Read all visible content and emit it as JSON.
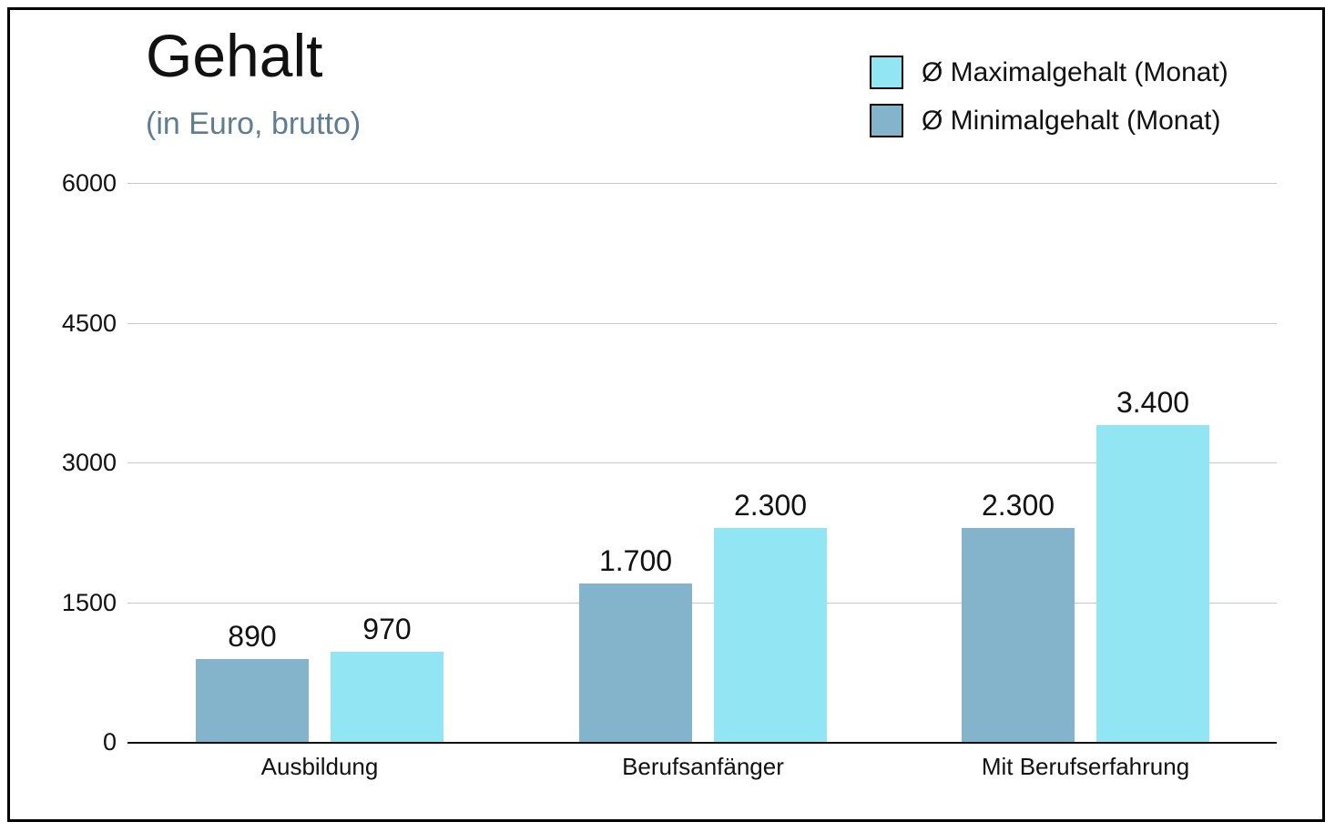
{
  "title": "Gehalt",
  "subtitle": "(in Euro, brutto)",
  "subtitle_color": "#5f7d91",
  "legend": {
    "position": "top-right",
    "items": [
      {
        "label": "Ø Maximalgehalt (Monat)",
        "color": "#92e6f3",
        "series_key": "max"
      },
      {
        "label": "Ø Minimalgehalt (Monat)",
        "color": "#84b4cb",
        "series_key": "min"
      }
    ]
  },
  "chart_data": {
    "type": "bar",
    "title": "Gehalt",
    "subtitle": "(in Euro, brutto)",
    "categories": [
      "Ausbildung",
      "Berufsanfänger",
      "Mit Berufserfahrung"
    ],
    "series": [
      {
        "key": "min",
        "name": "Ø Minimalgehalt (Monat)",
        "color": "#84b4cb",
        "values": [
          890,
          1700,
          2300
        ],
        "value_labels": [
          "890",
          "1.700",
          "2.300"
        ]
      },
      {
        "key": "max",
        "name": "Ø Maximalgehalt (Monat)",
        "color": "#92e6f3",
        "values": [
          970,
          2300,
          3400
        ],
        "value_labels": [
          "970",
          "2.300",
          "3.400"
        ]
      }
    ],
    "ylim": [
      0,
      6000
    ],
    "yticks": [
      0,
      1500,
      3000,
      4500,
      6000
    ],
    "ytick_labels": [
      "0",
      "1500",
      "3000",
      "4500",
      "6000"
    ],
    "grid": true,
    "gridline_color": "#c7c7c7",
    "axis_color": "#111111",
    "legend_position": "top-right"
  }
}
